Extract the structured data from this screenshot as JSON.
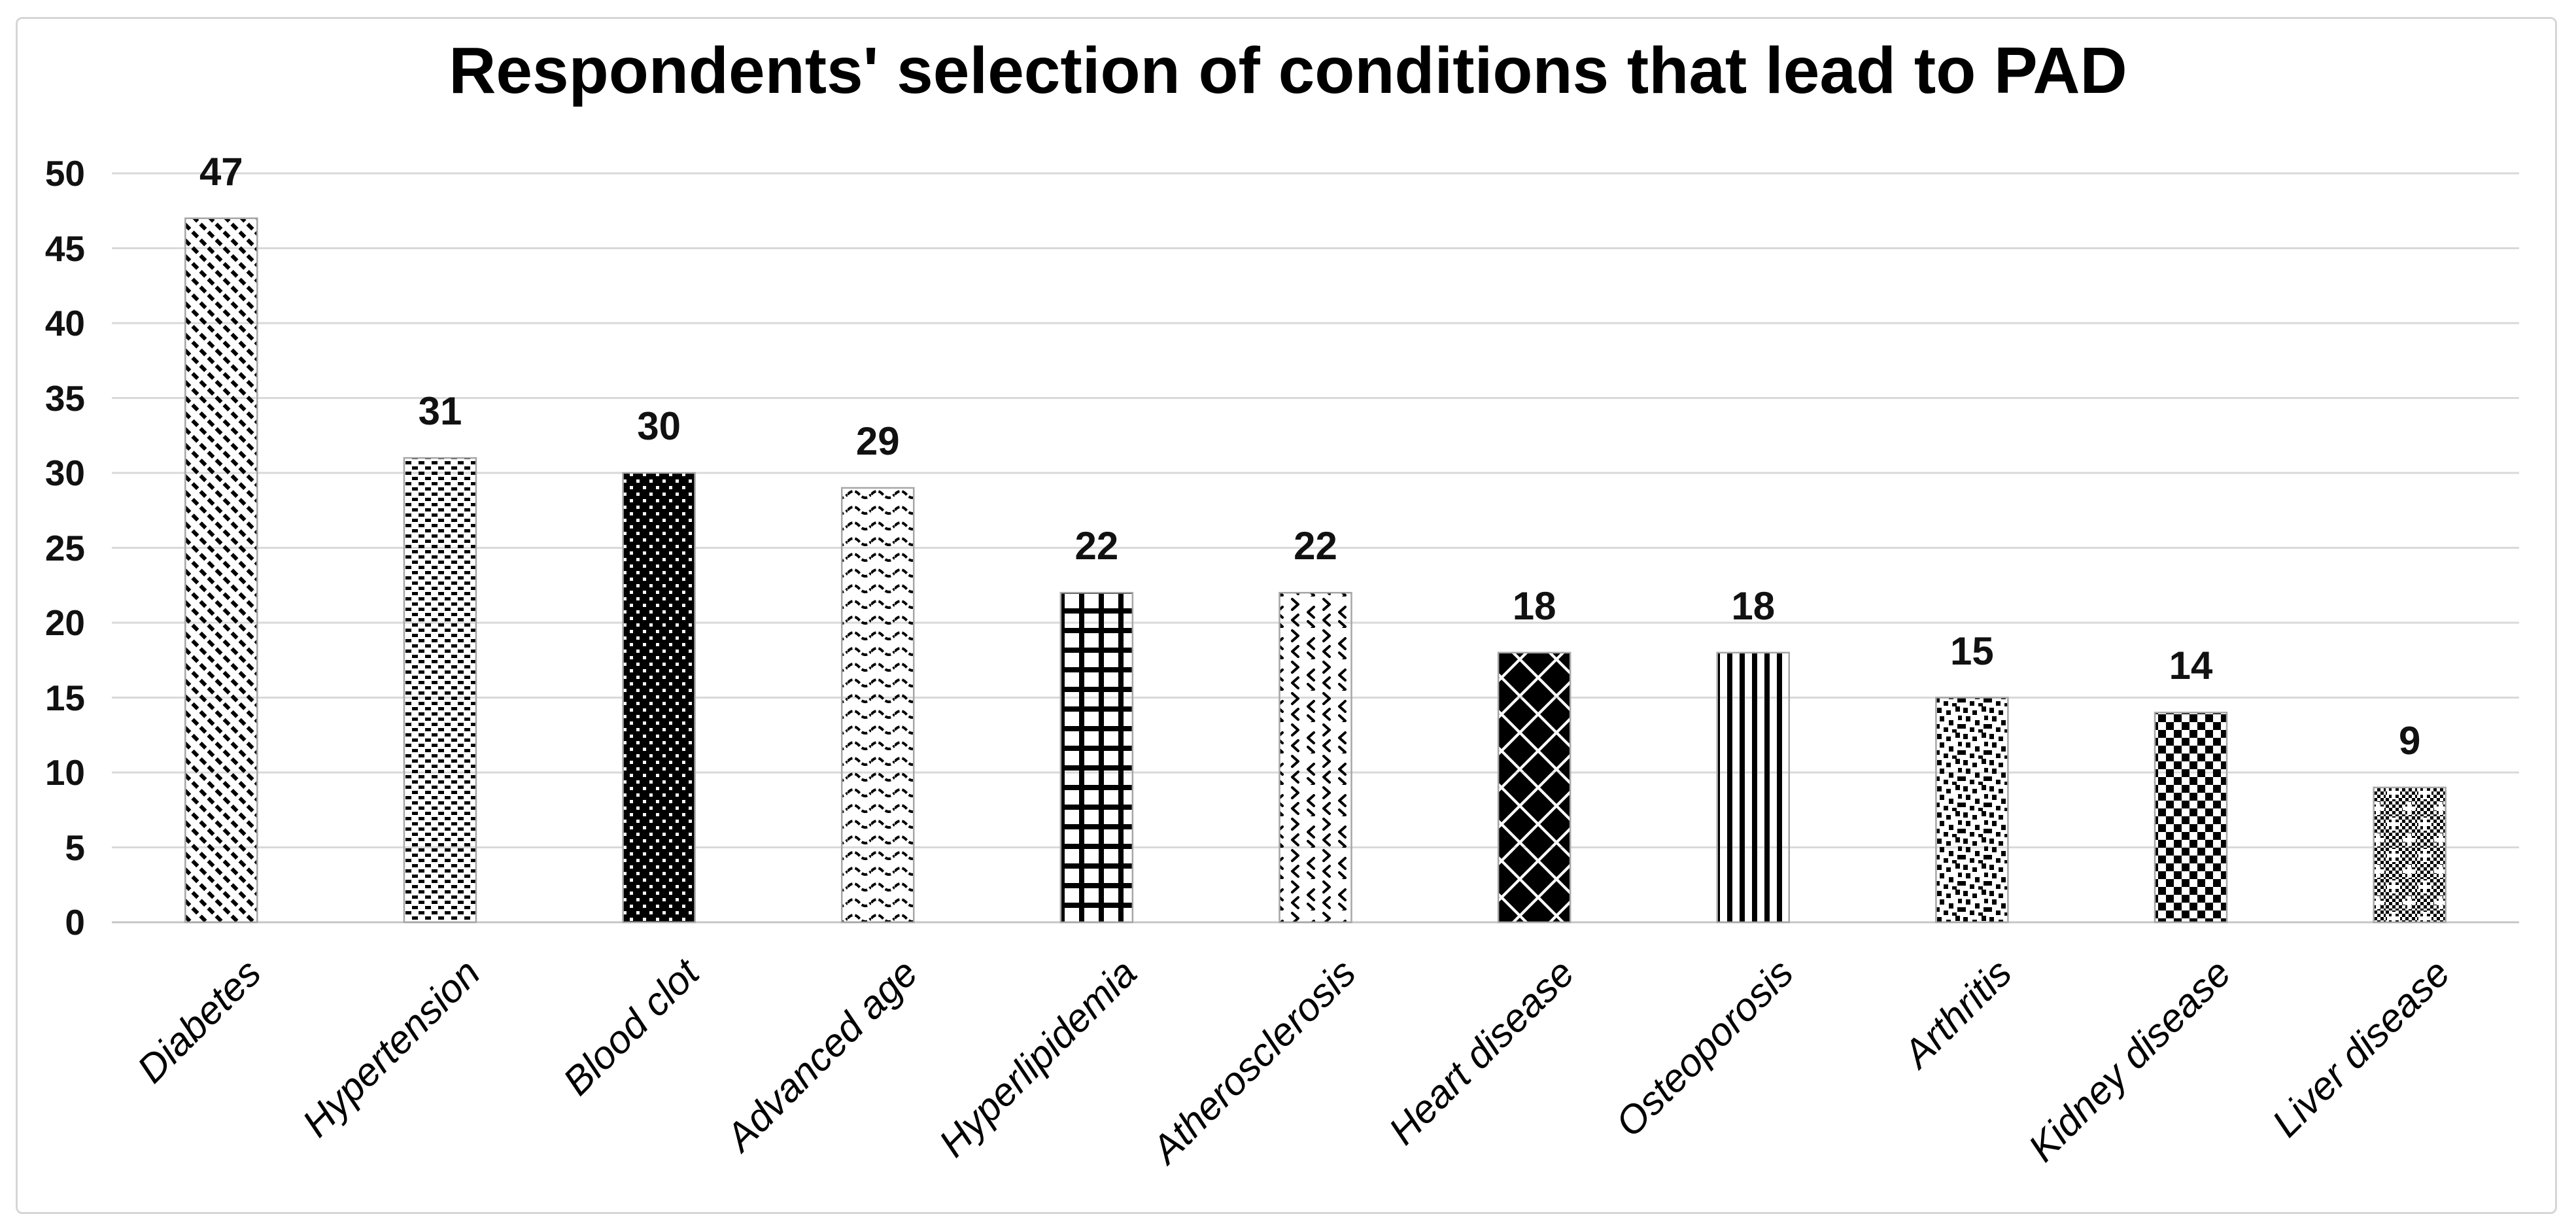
{
  "chart_data": {
    "type": "bar",
    "title": "Respondents' selection of conditions that lead to PAD",
    "categories": [
      "Diabetes",
      "Hypertension",
      "Blood clot",
      "Advanced age",
      "Hyperlipidemia",
      "Atherosclerosis",
      "Heart disease",
      "Osteoporosis",
      "Arthritis",
      "Kidney disease",
      "Liver disease"
    ],
    "values": [
      47,
      31,
      30,
      29,
      22,
      22,
      18,
      18,
      15,
      14,
      9
    ],
    "data_labels": [
      47,
      31,
      30,
      29,
      22,
      22,
      18,
      18,
      15,
      14,
      9
    ],
    "patterns": [
      "diagonal-dashed-stripes",
      "offset-dash-dots",
      "white-dots-on-black",
      "wavy-lines",
      "grid-plaid",
      "chevron-scatter",
      "diamond-checker",
      "vertical-stripes",
      "scattered-squares",
      "checkerboard",
      "micro-checker-crosses"
    ],
    "xlabel": "",
    "ylabel": "",
    "ylim": [
      0,
      50
    ],
    "yticks": [
      0,
      5,
      10,
      15,
      20,
      25,
      30,
      35,
      40,
      45,
      50
    ],
    "grid": "horizontal-gridlines-on",
    "legend": "none",
    "bar_color": "#000000",
    "colors": {
      "bar_outline": "#a6a6a6",
      "gridline": "#d9d9d9",
      "baseline": "#c6c6c6",
      "text": "#111111",
      "frame_border": "#d6d6d6",
      "background": "#ffffff"
    }
  }
}
